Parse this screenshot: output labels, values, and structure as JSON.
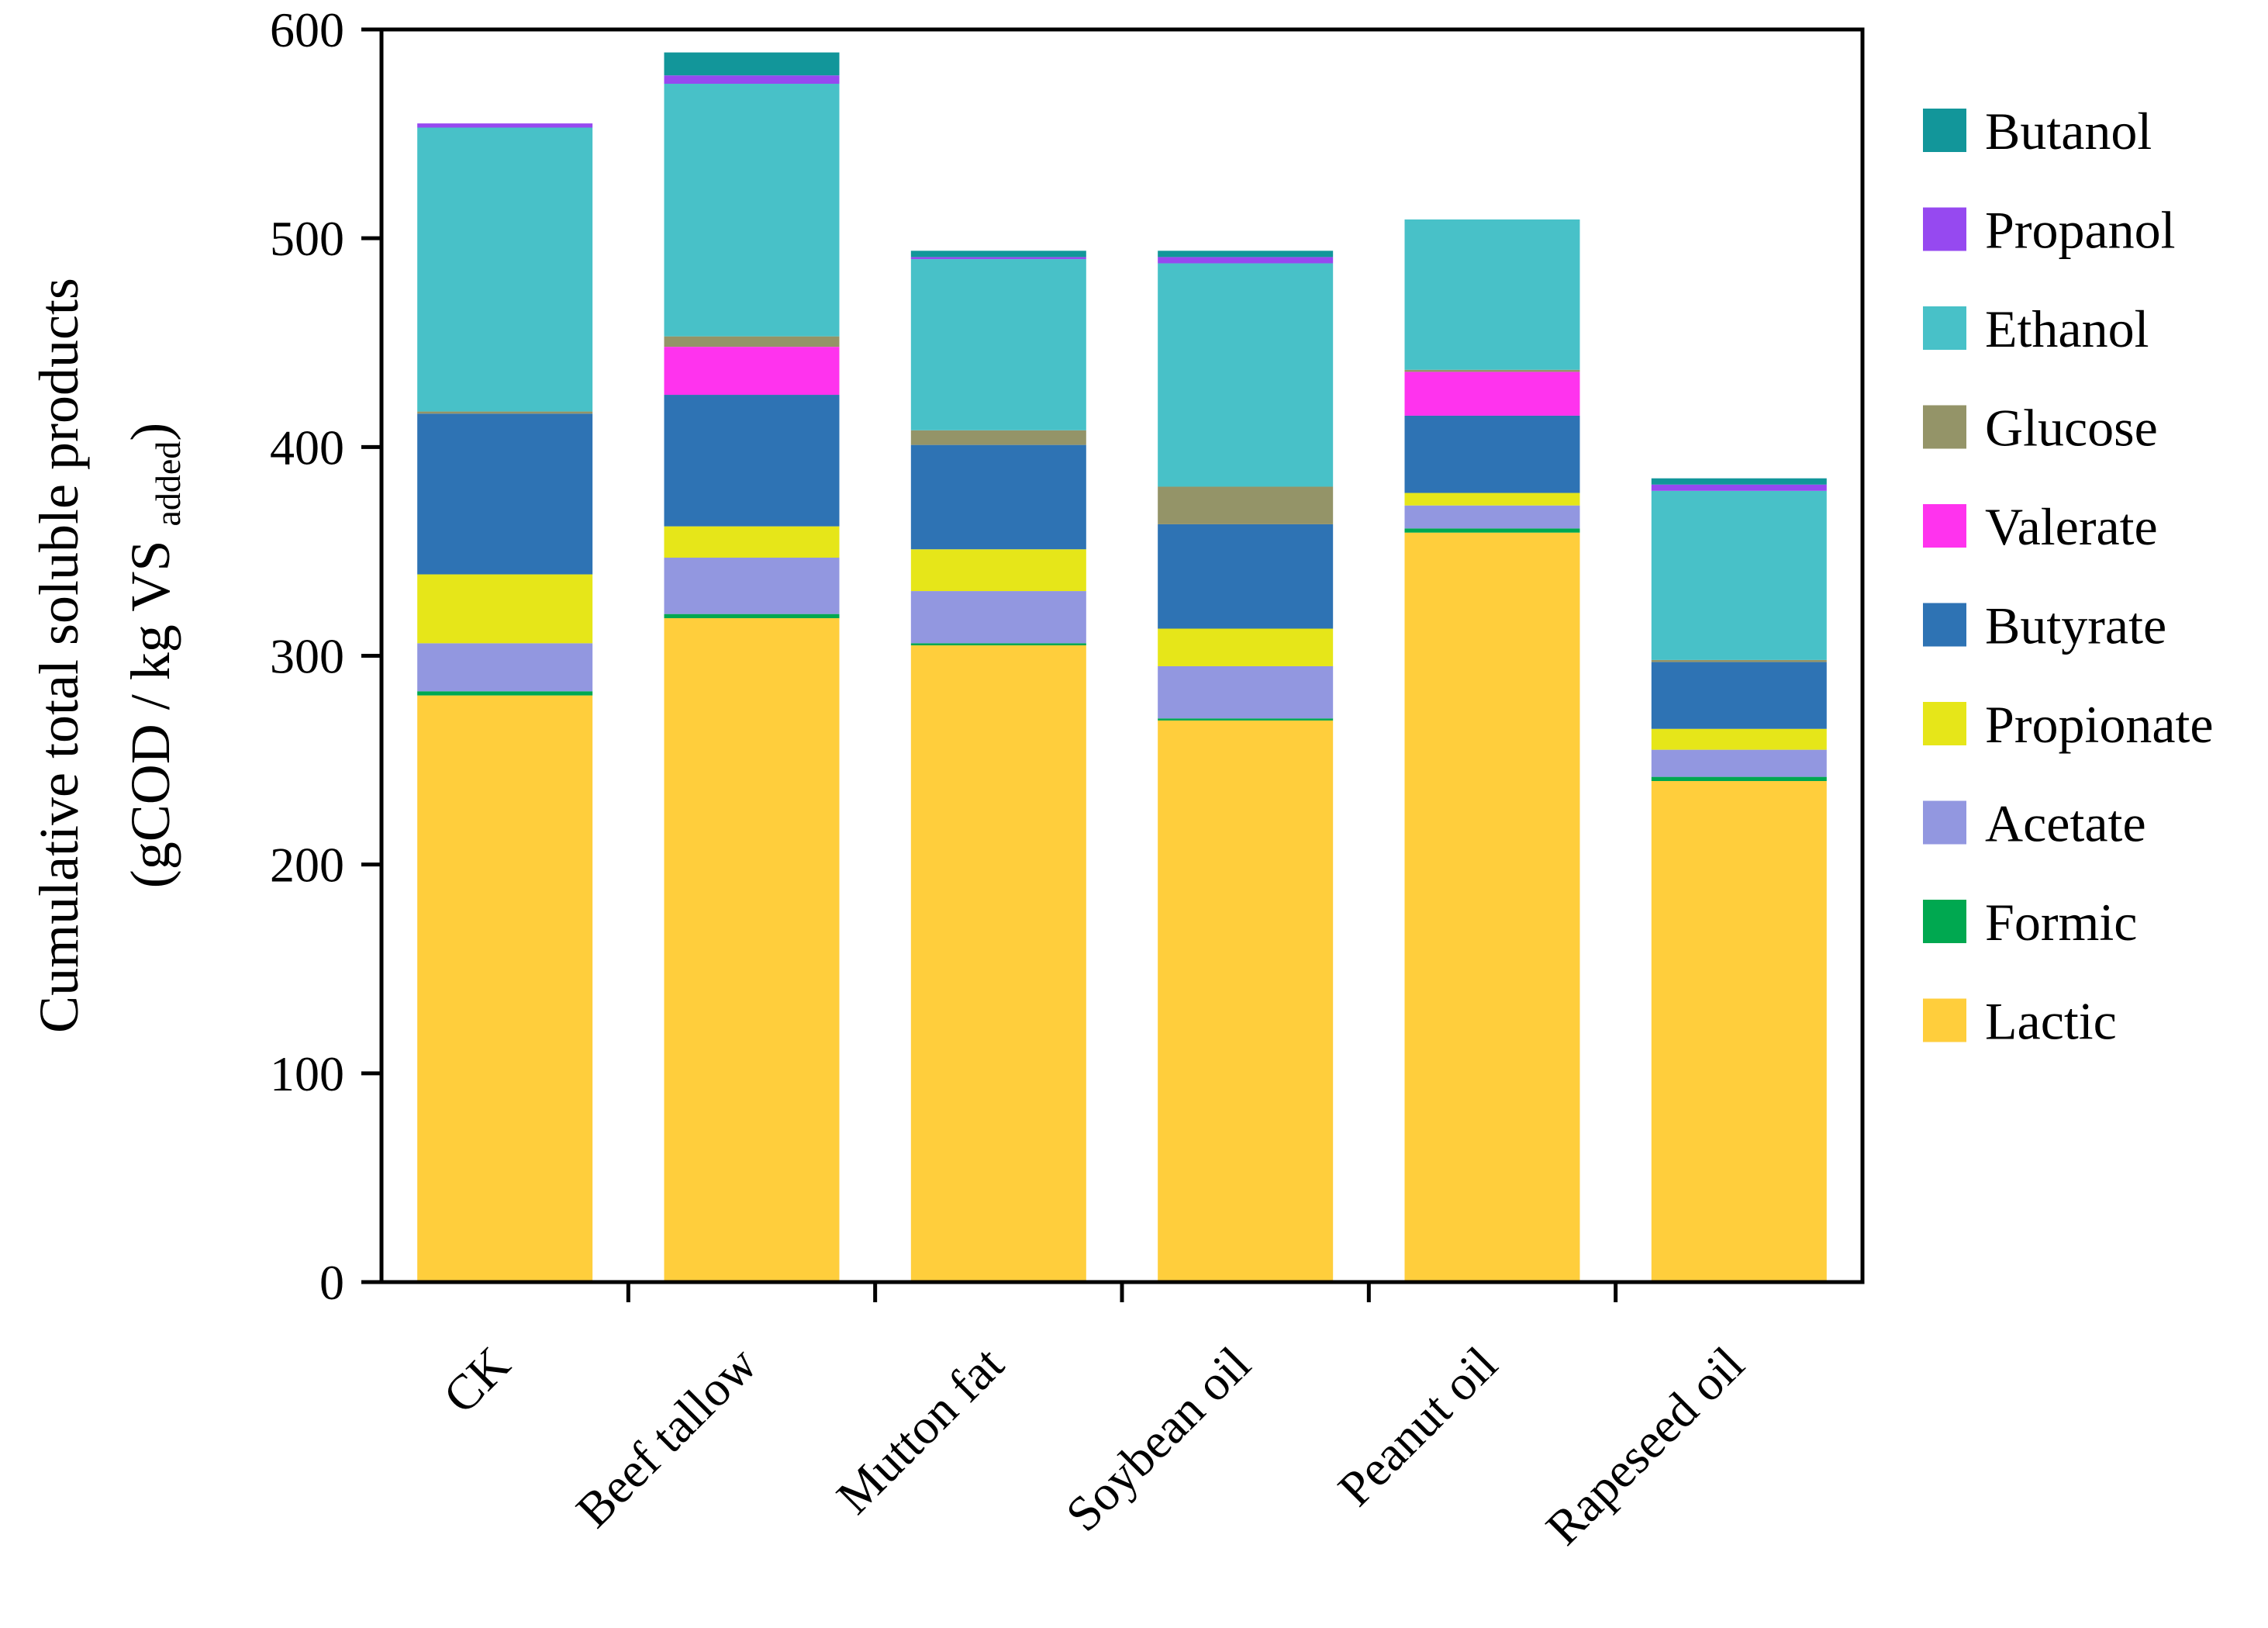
{
  "chart_data": {
    "type": "bar",
    "stacked": true,
    "title": "",
    "xlabel": "",
    "ylabel": "Cumulative total soluble products",
    "ylabel_line2": {
      "prefix": "(gCOD / kg VS",
      "subscript": "added",
      "suffix": ")"
    },
    "ylim": [
      0,
      600
    ],
    "yticks": [
      0,
      100,
      200,
      300,
      400,
      500,
      600
    ],
    "legend_position": "right",
    "categories": [
      "CK",
      "Beef tallow",
      "Mutton fat",
      "Soybean oil",
      "Peanut oil",
      "Rapeseed oil"
    ],
    "series": [
      {
        "name": "Lactic",
        "color": "#FFCE3C",
        "values": [
          281,
          318,
          305,
          269,
          359,
          240
        ]
      },
      {
        "name": "Formic",
        "color": "#00A850",
        "values": [
          2,
          2,
          1,
          1,
          2,
          2
        ]
      },
      {
        "name": "Acetate",
        "color": "#9297E0",
        "values": [
          23,
          27,
          25,
          25,
          11,
          13
        ]
      },
      {
        "name": "Propionate",
        "color": "#E6E619",
        "values": [
          33,
          15,
          20,
          18,
          6,
          10
        ]
      },
      {
        "name": "Butyrate",
        "color": "#2E73B4",
        "values": [
          77,
          63,
          50,
          50,
          37,
          32
        ]
      },
      {
        "name": "Valerate",
        "color": "#FF33EE",
        "values": [
          0,
          23,
          0,
          0,
          21,
          0
        ]
      },
      {
        "name": "Glucose",
        "color": "#949468",
        "values": [
          1,
          5,
          7,
          18,
          1,
          1
        ]
      },
      {
        "name": "Ethanol",
        "color": "#48C1C8",
        "values": [
          136,
          121,
          82,
          107,
          72,
          81
        ]
      },
      {
        "name": "Propanol",
        "color": "#9649F0",
        "values": [
          2,
          4,
          1,
          3,
          0,
          3
        ]
      },
      {
        "name": "Butanol",
        "color": "#12969A",
        "values": [
          0,
          11,
          3,
          3,
          0,
          3
        ]
      }
    ]
  }
}
